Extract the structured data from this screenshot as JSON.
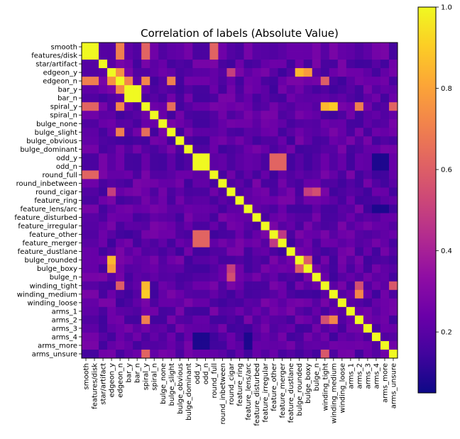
{
  "chart_data": {
    "type": "heatmap",
    "title": "Correlation of labels (Absolute Value)",
    "labels": [
      "smooth",
      "features/disk",
      "star/artifact",
      "edgeon_y",
      "edgeon_n",
      "bar_y",
      "bar_n",
      "spiral_y",
      "spiral_n",
      "bulge_none",
      "bulge_slight",
      "bulge_obvious",
      "bulge_dominant",
      "odd_y",
      "odd_n",
      "round_full",
      "round_inbetween",
      "round_cigar",
      "feature_ring",
      "feature_lens/arc",
      "feature_disturbed",
      "feature_irregular",
      "feature_other",
      "feature_merger",
      "feature_dustlane",
      "bulge_rounded",
      "bulge_boxy",
      "bulge_n",
      "winding_tight",
      "winding_medium",
      "winding_loose",
      "arms_1",
      "arms_2",
      "arms_3",
      "arms_4",
      "arms_more",
      "arms_unsure"
    ],
    "colormap": "plasma",
    "value_range": [
      0.05,
      1.0
    ],
    "colorbar": {
      "ticks": [
        0.2,
        0.4,
        0.6,
        0.8,
        1.0
      ],
      "tick_labels": [
        "0.2",
        "0.4",
        "0.6",
        "0.8",
        "1.0"
      ]
    },
    "strong_pairs": [
      [
        "smooth",
        "features/disk",
        1.0
      ],
      [
        "odd_y",
        "odd_n",
        1.0
      ],
      [
        "bar_y",
        "bar_n",
        1.0
      ],
      [
        "edgeon_y",
        "edgeon_n",
        0.75
      ],
      [
        "edgeon_y",
        "bulge_rounded",
        0.85
      ],
      [
        "edgeon_y",
        "bulge_boxy",
        0.78
      ],
      [
        "spiral_y",
        "winding_tight",
        0.85
      ],
      [
        "spiral_y",
        "winding_medium",
        0.9
      ],
      [
        "spiral_y",
        "arms_2",
        0.7
      ],
      [
        "spiral_y",
        "arms_unsure",
        0.62
      ],
      [
        "smooth",
        "edgeon_n",
        0.7
      ],
      [
        "smooth",
        "spiral_y",
        0.62
      ],
      [
        "smooth",
        "round_full",
        0.62
      ],
      [
        "features/disk",
        "edgeon_n",
        0.7
      ],
      [
        "features/disk",
        "spiral_y",
        0.62
      ],
      [
        "features/disk",
        "round_full",
        0.62
      ],
      [
        "edgeon_n",
        "bar_y",
        0.72
      ],
      [
        "edgeon_n",
        "spiral_y",
        0.72
      ],
      [
        "edgeon_n",
        "bulge_slight",
        0.7
      ],
      [
        "edgeon_n",
        "winding_tight",
        0.6
      ],
      [
        "spiral_y",
        "bulge_slight",
        0.65
      ],
      [
        "bulge_rounded",
        "bulge_boxy",
        0.6
      ],
      [
        "odd_y",
        "feature_other",
        0.62
      ],
      [
        "odd_y",
        "feature_merger",
        0.62
      ],
      [
        "odd_n",
        "feature_other",
        0.62
      ],
      [
        "odd_n",
        "feature_merger",
        0.62
      ],
      [
        "feature_other",
        "feature_merger",
        0.48
      ],
      [
        "winding_medium",
        "arms_2",
        0.72
      ],
      [
        "winding_tight",
        "arms_2",
        0.55
      ],
      [
        "winding_tight",
        "arms_unsure",
        0.58
      ],
      [
        "round_cigar",
        "bulge_n",
        0.55
      ],
      [
        "round_cigar",
        "bulge_boxy",
        0.5
      ],
      [
        "edgeon_y",
        "round_cigar",
        0.5
      ]
    ]
  }
}
